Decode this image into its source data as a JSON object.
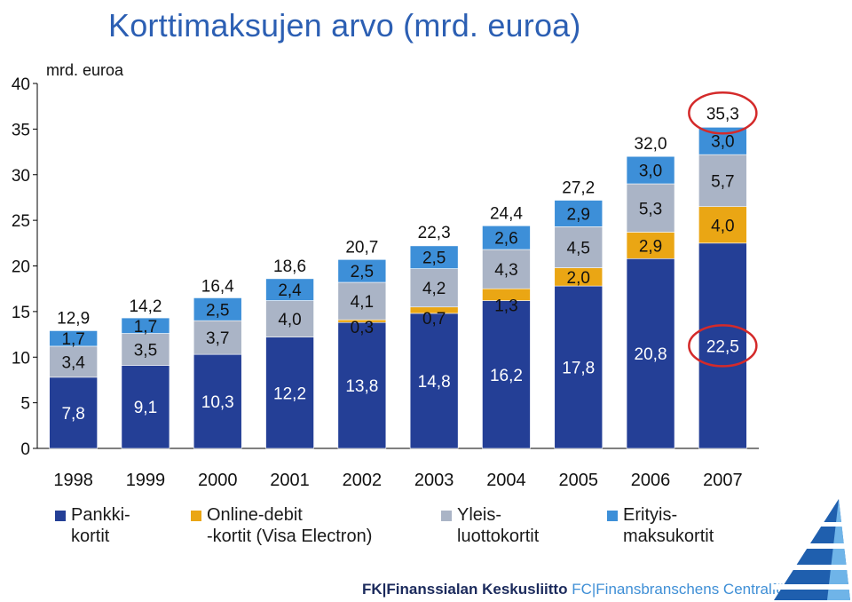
{
  "title": "Korttimaksujen arvo (mrd. euroa)",
  "footer": {
    "fk": "FK|Finanssialan Keskusliitto",
    "fc": "FC|Finansbranschens Centralförbund"
  },
  "chart_data": {
    "type": "bar",
    "stacked": true,
    "ylabel": "mrd. euroa",
    "ylim": [
      0,
      40
    ],
    "yticks": [
      "0",
      "5",
      "10",
      "15",
      "20",
      "25",
      "30",
      "35",
      "40"
    ],
    "categories": [
      "1998",
      "1999",
      "2000",
      "2001",
      "2002",
      "2003",
      "2004",
      "2005",
      "2006",
      "2007"
    ],
    "totals": [
      12.9,
      14.2,
      16.4,
      18.6,
      20.7,
      22.3,
      24.4,
      27.2,
      32.0,
      35.3
    ],
    "total_labels": [
      "12,9",
      "14,2",
      "16,4",
      "18,6",
      "20,7",
      "22,3",
      "24,4",
      "27,2",
      "32,0",
      "35,3"
    ],
    "series": [
      {
        "name": "Pankki-\nkortit",
        "color": "#243f96",
        "values": [
          7.8,
          9.1,
          10.3,
          12.2,
          13.8,
          14.8,
          16.2,
          17.8,
          20.8,
          22.5
        ],
        "labels": [
          "7,8",
          "9,1",
          "10,3",
          "12,2",
          "13,8",
          "14,8",
          "16,2",
          "17,8",
          "20,8",
          "22,5"
        ]
      },
      {
        "name": "Online-debit\n-kortit (Visa Electron)",
        "color": "#eaa614",
        "values": [
          0,
          0,
          0,
          0,
          0.3,
          0.7,
          1.3,
          2.0,
          2.9,
          4.0
        ],
        "labels": [
          "",
          "",
          "",
          "",
          "0,3",
          "0,7",
          "1,3",
          "2,0",
          "2,9",
          "4,0"
        ]
      },
      {
        "name": "Yleis-\nluottokortit",
        "color": "#aab4c6",
        "values": [
          3.4,
          3.5,
          3.7,
          4.0,
          4.1,
          4.2,
          4.3,
          4.5,
          5.3,
          5.7
        ],
        "labels": [
          "3,4",
          "3,5",
          "3,7",
          "4,0",
          "4,1",
          "4,2",
          "4,3",
          "4,5",
          "5,3",
          "5,7"
        ]
      },
      {
        "name": "Erityis-\nmaksukortit",
        "color": "#3d8fd8",
        "values": [
          1.7,
          1.7,
          2.5,
          2.4,
          2.5,
          2.5,
          2.6,
          2.9,
          3.0,
          3.0
        ],
        "labels": [
          "1,7",
          "1,7",
          "2,5",
          "2,4",
          "2,5",
          "2,5",
          "2,6",
          "2,9",
          "3,0",
          "3,0"
        ]
      }
    ],
    "highlighted": [
      "35,3",
      "22,5"
    ],
    "grid": false,
    "legend": "bottom"
  }
}
